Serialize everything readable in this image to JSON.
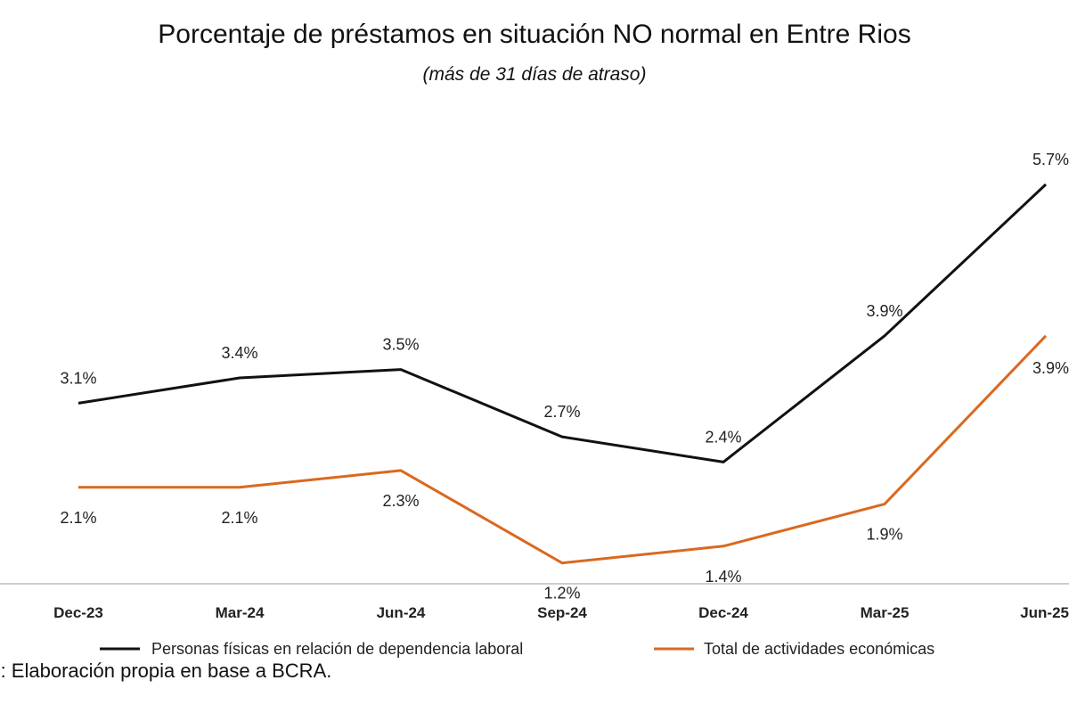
{
  "chart_data": {
    "type": "line",
    "title": "Porcentaje de préstamos en situación NO normal en Entre Rios",
    "subtitle": "(más de 31 días de atraso)",
    "categories": [
      "Dec-23",
      "Mar-24",
      "Jun-24",
      "Sep-24",
      "Dec-24",
      "Mar-25",
      "Jun-25"
    ],
    "series": [
      {
        "name": "Personas físicas en relación de dependencia laboral",
        "color": "#111111",
        "values": [
          3.1,
          3.4,
          3.5,
          2.7,
          2.4,
          3.9,
          5.7
        ],
        "labels": [
          "3.1%",
          "3.4%",
          "3.5%",
          "2.7%",
          "2.4%",
          "3.9%",
          "5.7%"
        ],
        "label_position": "above"
      },
      {
        "name": "Total de actividades económicas",
        "color": "#d9691f",
        "values": [
          2.1,
          2.1,
          2.3,
          1.2,
          1.4,
          1.9,
          3.9
        ],
        "labels": [
          "2.1%",
          "2.1%",
          "2.3%",
          "1.2%",
          "1.4%",
          "1.9%",
          "3.9%"
        ],
        "label_position": "below"
      }
    ],
    "ylim": [
      0,
      6.5
    ],
    "grid": false,
    "legend": "bottom"
  },
  "source_note": "nte: Elaboración propia en base a BCRA."
}
